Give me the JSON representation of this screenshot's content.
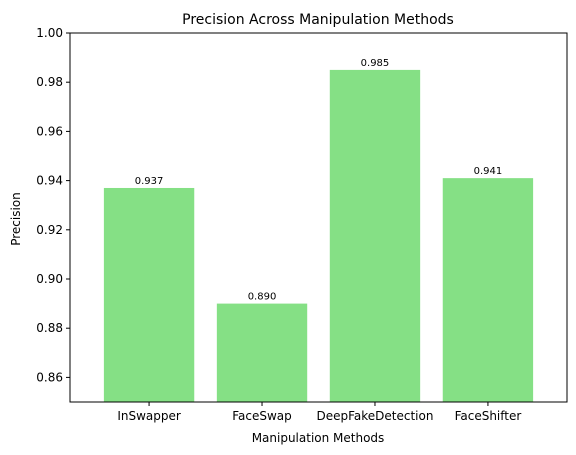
{
  "chart_data": {
    "type": "bar",
    "title": "Precision Across Manipulation Methods",
    "xlabel": "Manipulation Methods",
    "ylabel": "Precision",
    "categories": [
      "InSwapper",
      "FaceSwap",
      "DeepFakeDetection",
      "FaceShifter"
    ],
    "values": [
      0.937,
      0.89,
      0.985,
      0.941
    ],
    "value_labels": [
      "0.937",
      "0.890",
      "0.985",
      "0.941"
    ],
    "ylim": [
      0.85,
      1.0
    ],
    "yticks": [
      0.86,
      0.88,
      0.9,
      0.92,
      0.94,
      0.96,
      0.98,
      1.0
    ],
    "ytick_labels": [
      "0.86",
      "0.88",
      "0.90",
      "0.92",
      "0.94",
      "0.96",
      "0.98",
      "1.00"
    ],
    "grid": false,
    "bar_color": "#85e085"
  }
}
